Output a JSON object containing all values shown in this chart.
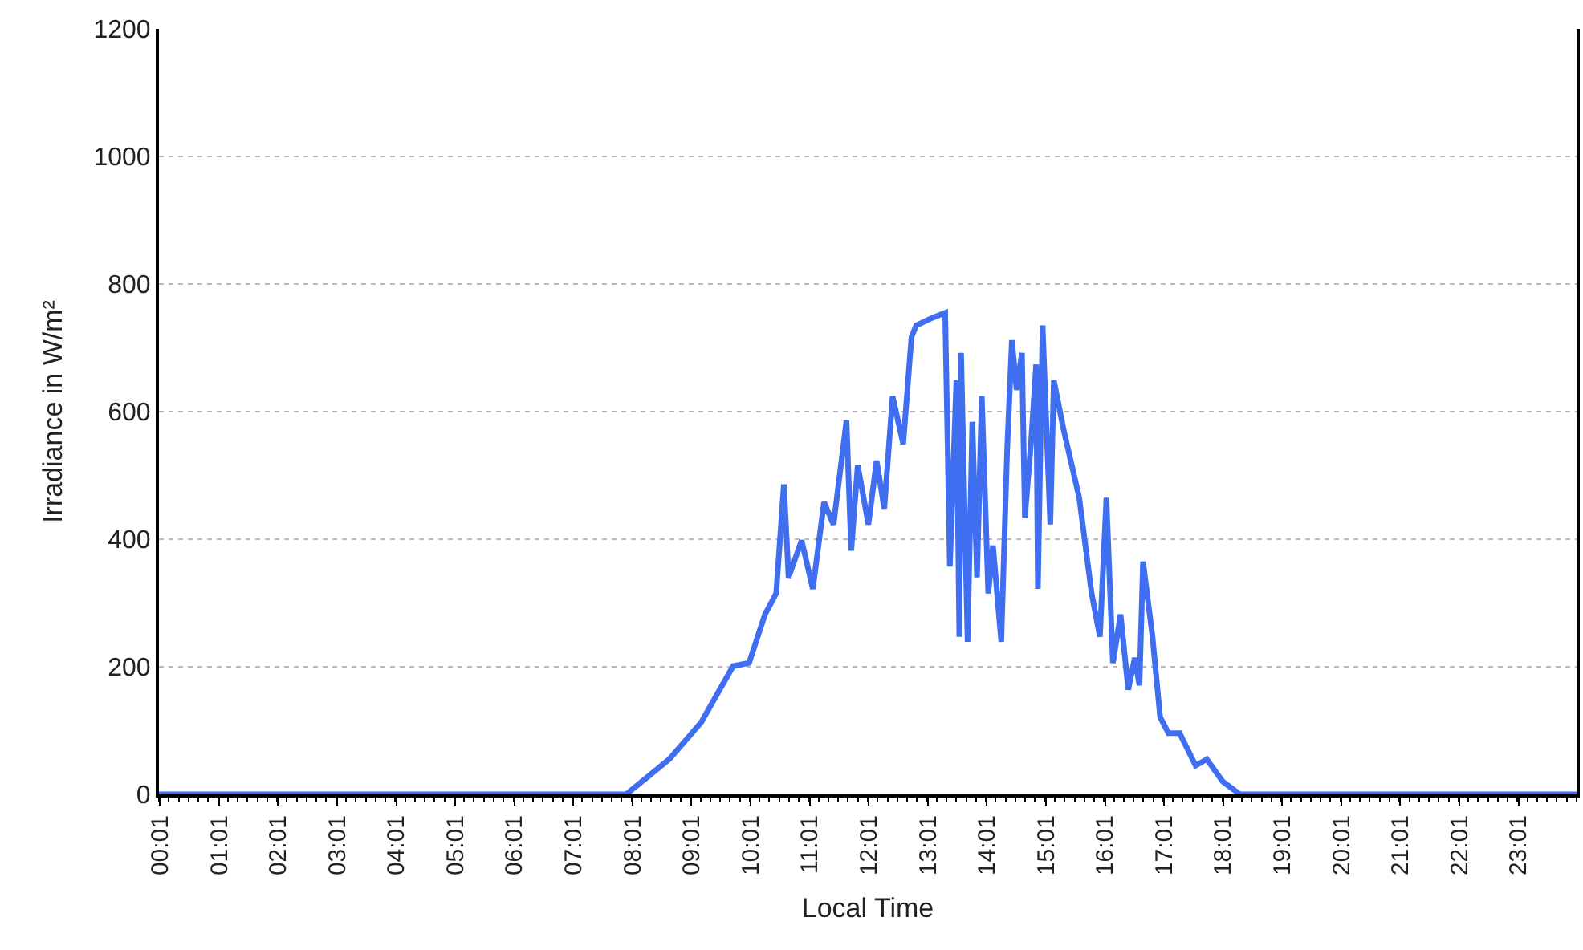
{
  "chart_data": {
    "type": "line",
    "xlabel": "Local Time",
    "ylabel": "Irradiance in W/m²",
    "x": [
      0,
      7.91,
      8.64,
      9.18,
      9.72,
      9.99,
      10.26,
      10.45,
      10.58,
      10.66,
      10.88,
      11.07,
      11.26,
      11.42,
      11.64,
      11.72,
      11.83,
      12.01,
      12.15,
      12.28,
      12.42,
      12.6,
      12.74,
      12.82,
      13.09,
      13.31,
      13.39,
      13.5,
      13.55,
      13.58,
      13.69,
      13.77,
      13.85,
      13.93,
      14.04,
      14.12,
      14.26,
      14.36,
      14.44,
      14.52,
      14.61,
      14.66,
      14.77,
      14.85,
      14.88,
      14.96,
      15.04,
      15.09,
      15.15,
      15.31,
      15.58,
      15.79,
      15.93,
      16.04,
      16.15,
      16.28,
      16.41,
      16.52,
      16.6,
      16.66,
      16.82,
      16.95,
      17.09,
      17.28,
      17.55,
      17.74,
      18.01,
      18.3,
      24
    ],
    "series": [
      {
        "color": "#3f6ff0",
        "values": [
          0,
          0,
          55,
          113,
          201,
          206,
          282,
          315,
          486,
          340,
          398,
          322,
          458,
          423,
          586,
          382,
          516,
          423,
          523,
          448,
          624,
          549,
          717,
          735,
          747,
          755,
          357,
          649,
          247,
          692,
          239,
          584,
          340,
          624,
          315,
          390,
          239,
          541,
          712,
          634,
          692,
          433,
          559,
          674,
          322,
          735,
          541,
          423,
          649,
          574,
          465,
          315,
          247,
          465,
          206,
          282,
          164,
          214,
          171,
          365,
          247,
          121,
          96,
          96,
          45,
          55,
          20,
          0,
          0
        ]
      }
    ],
    "xlim": [
      0,
      24
    ],
    "xticks": [
      {
        "value": 0.0167,
        "label": "00:01"
      },
      {
        "value": 1.0167,
        "label": "01:01"
      },
      {
        "value": 2.0167,
        "label": "02:01"
      },
      {
        "value": 3.0167,
        "label": "03:01"
      },
      {
        "value": 4.0167,
        "label": "04:01"
      },
      {
        "value": 5.0167,
        "label": "05:01"
      },
      {
        "value": 6.0167,
        "label": "06:01"
      },
      {
        "value": 7.0167,
        "label": "07:01"
      },
      {
        "value": 8.0167,
        "label": "08:01"
      },
      {
        "value": 9.0167,
        "label": "09:01"
      },
      {
        "value": 10.0167,
        "label": "10:01"
      },
      {
        "value": 11.0167,
        "label": "11:01"
      },
      {
        "value": 12.0167,
        "label": "12:01"
      },
      {
        "value": 13.0167,
        "label": "13:01"
      },
      {
        "value": 14.0167,
        "label": "14:01"
      },
      {
        "value": 15.0167,
        "label": "15:01"
      },
      {
        "value": 16.0167,
        "label": "16:01"
      },
      {
        "value": 17.0167,
        "label": "17:01"
      },
      {
        "value": 18.0167,
        "label": "18:01"
      },
      {
        "value": 19.0167,
        "label": "19:01"
      },
      {
        "value": 20.0167,
        "label": "20:01"
      },
      {
        "value": 21.0167,
        "label": "21:01"
      },
      {
        "value": 22.0167,
        "label": "22:01"
      },
      {
        "value": 23.0167,
        "label": "23:01"
      }
    ],
    "ylim": [
      0,
      1200
    ],
    "yticks": [
      0,
      200,
      400,
      600,
      800,
      1000,
      1200
    ],
    "grid": "y",
    "marker": "none",
    "line_style": "solid"
  }
}
